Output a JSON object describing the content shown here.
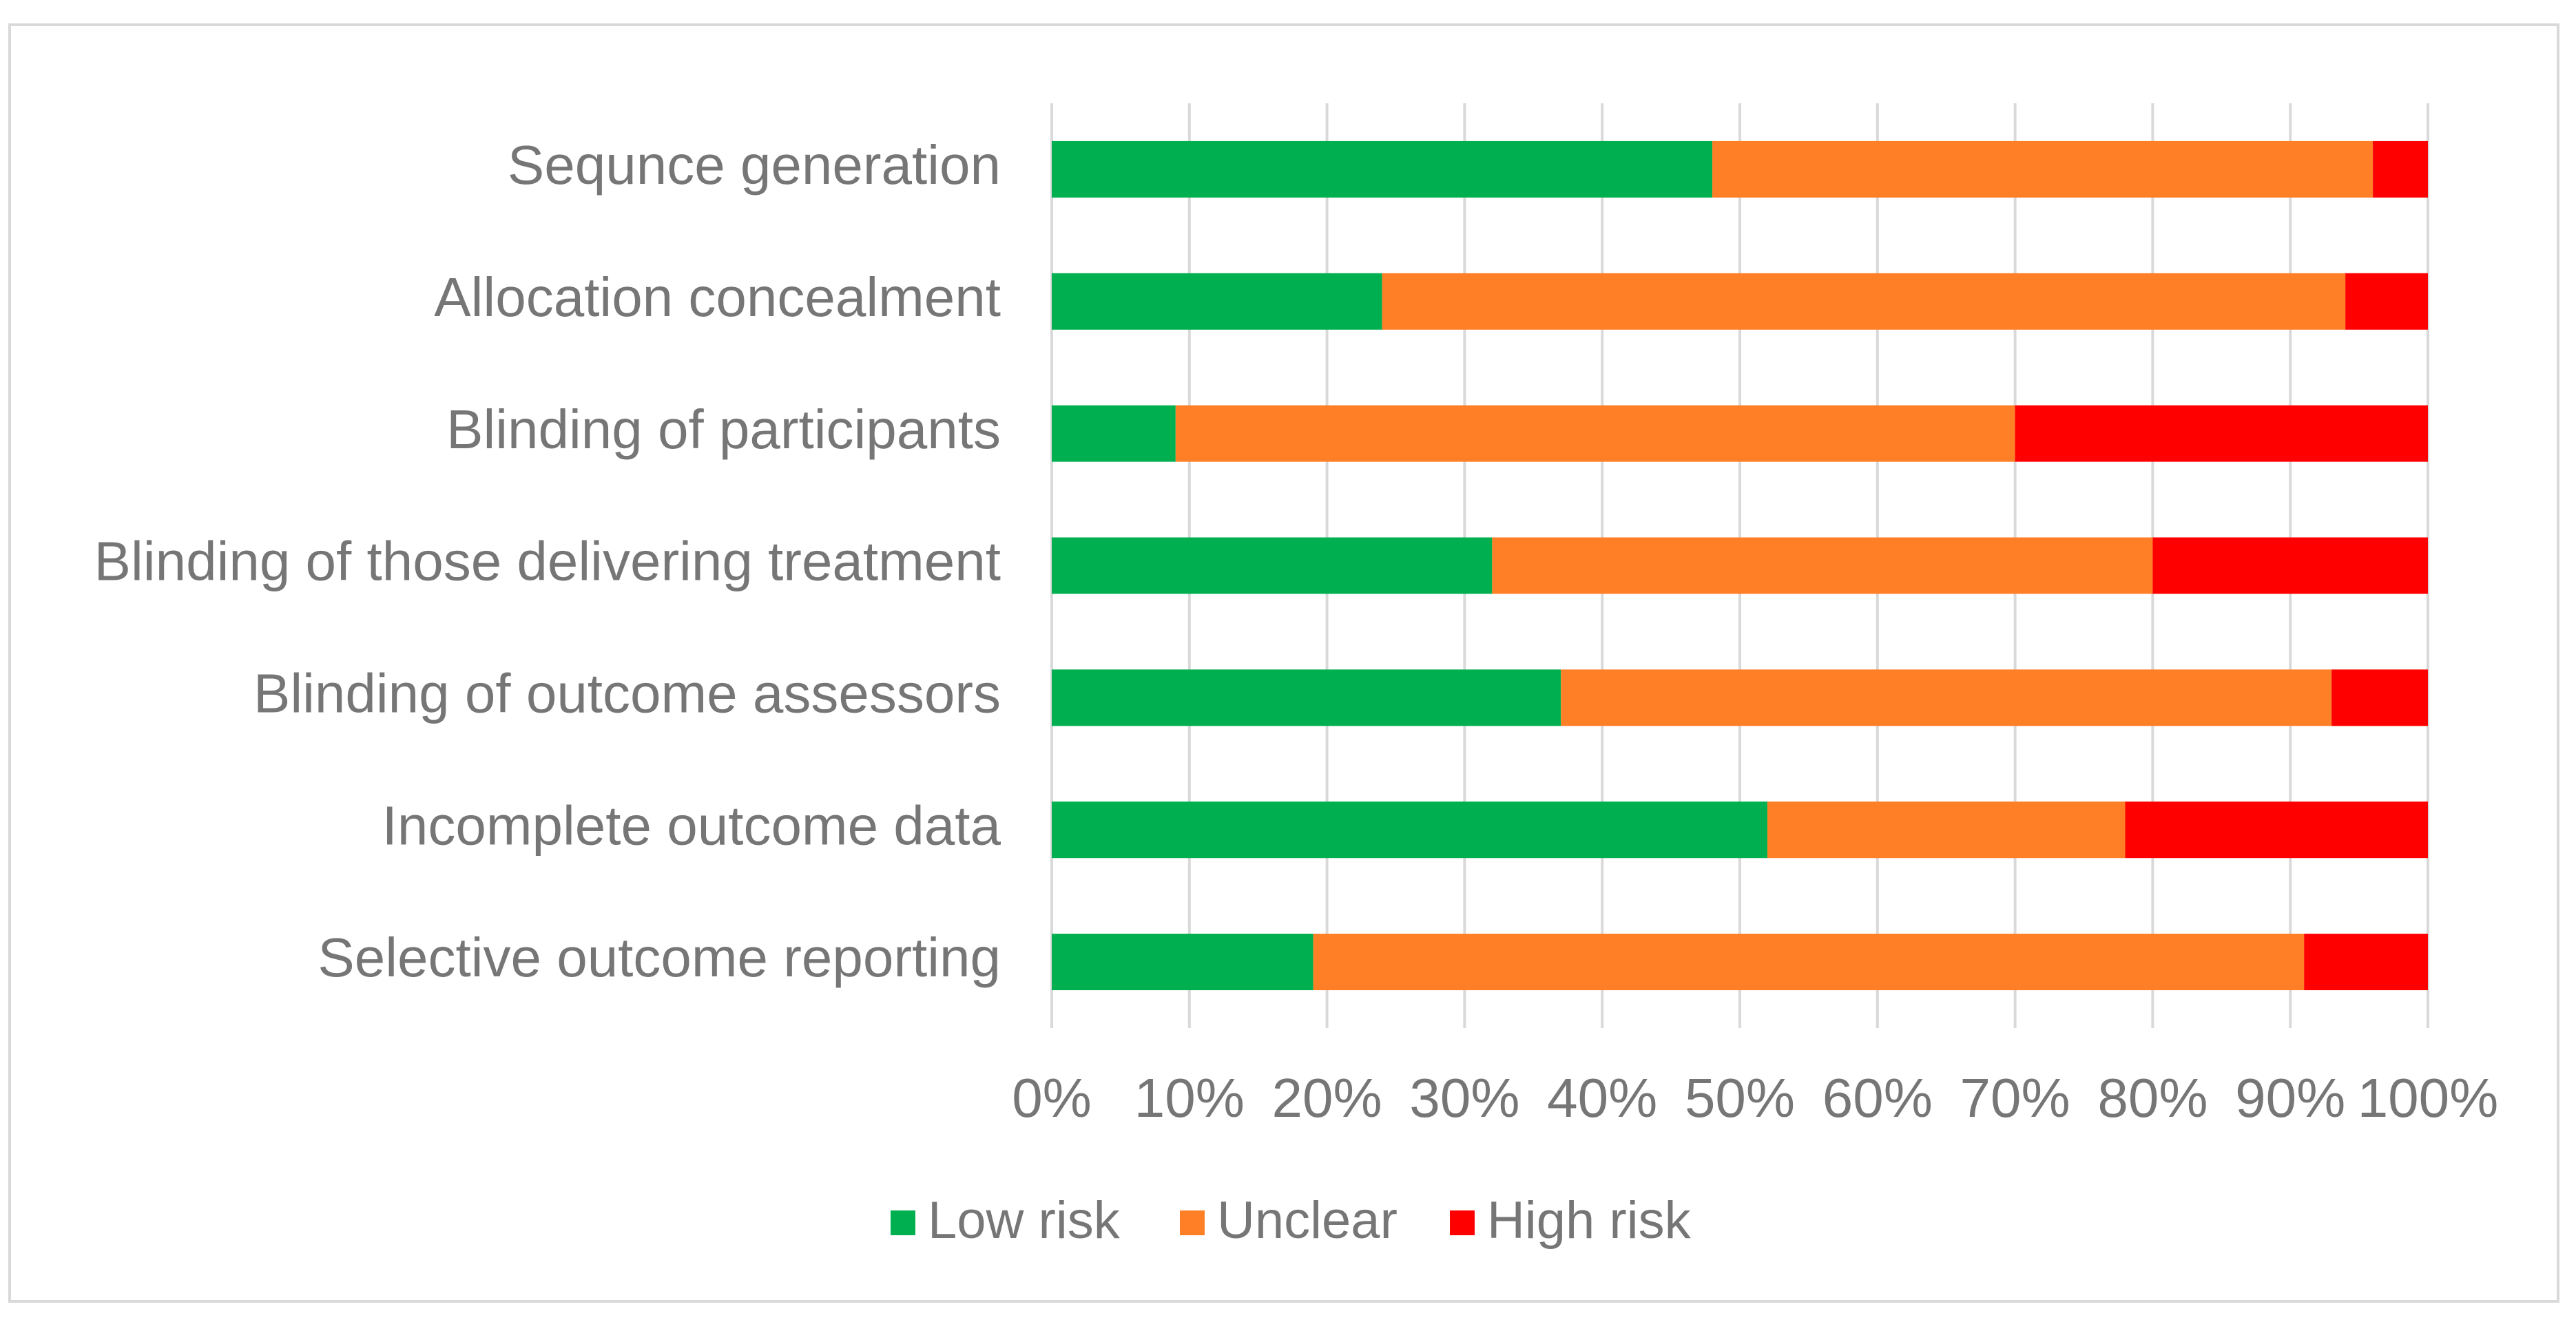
{
  "chart_data": {
    "type": "bar",
    "orientation": "horizontal",
    "stacked": true,
    "percent": true,
    "title": "",
    "xlabel": "",
    "ylabel": "",
    "categories": [
      "Sequnce generation",
      "Allocation concealment",
      "Blinding of participants",
      "Blinding of those delivering treatment",
      "Blinding of outcome assessors",
      "Incomplete outcome data",
      "Selective outcome reporting"
    ],
    "series": [
      {
        "name": "Low risk",
        "color": "#00b050",
        "values": [
          48,
          24,
          9,
          32,
          37,
          52,
          19
        ]
      },
      {
        "name": "Unclear",
        "color": "#ff7f27",
        "values": [
          48,
          70,
          61,
          48,
          56,
          26,
          72
        ]
      },
      {
        "name": "High risk",
        "color": "#ff0000",
        "values": [
          4,
          6,
          30,
          20,
          7,
          22,
          9
        ]
      }
    ],
    "xlim": [
      0,
      100
    ],
    "xticks": [
      "0%",
      "10%",
      "20%",
      "30%",
      "40%",
      "50%",
      "60%",
      "70%",
      "80%",
      "90%",
      "100%"
    ],
    "grid": true,
    "legend": "bottom"
  }
}
